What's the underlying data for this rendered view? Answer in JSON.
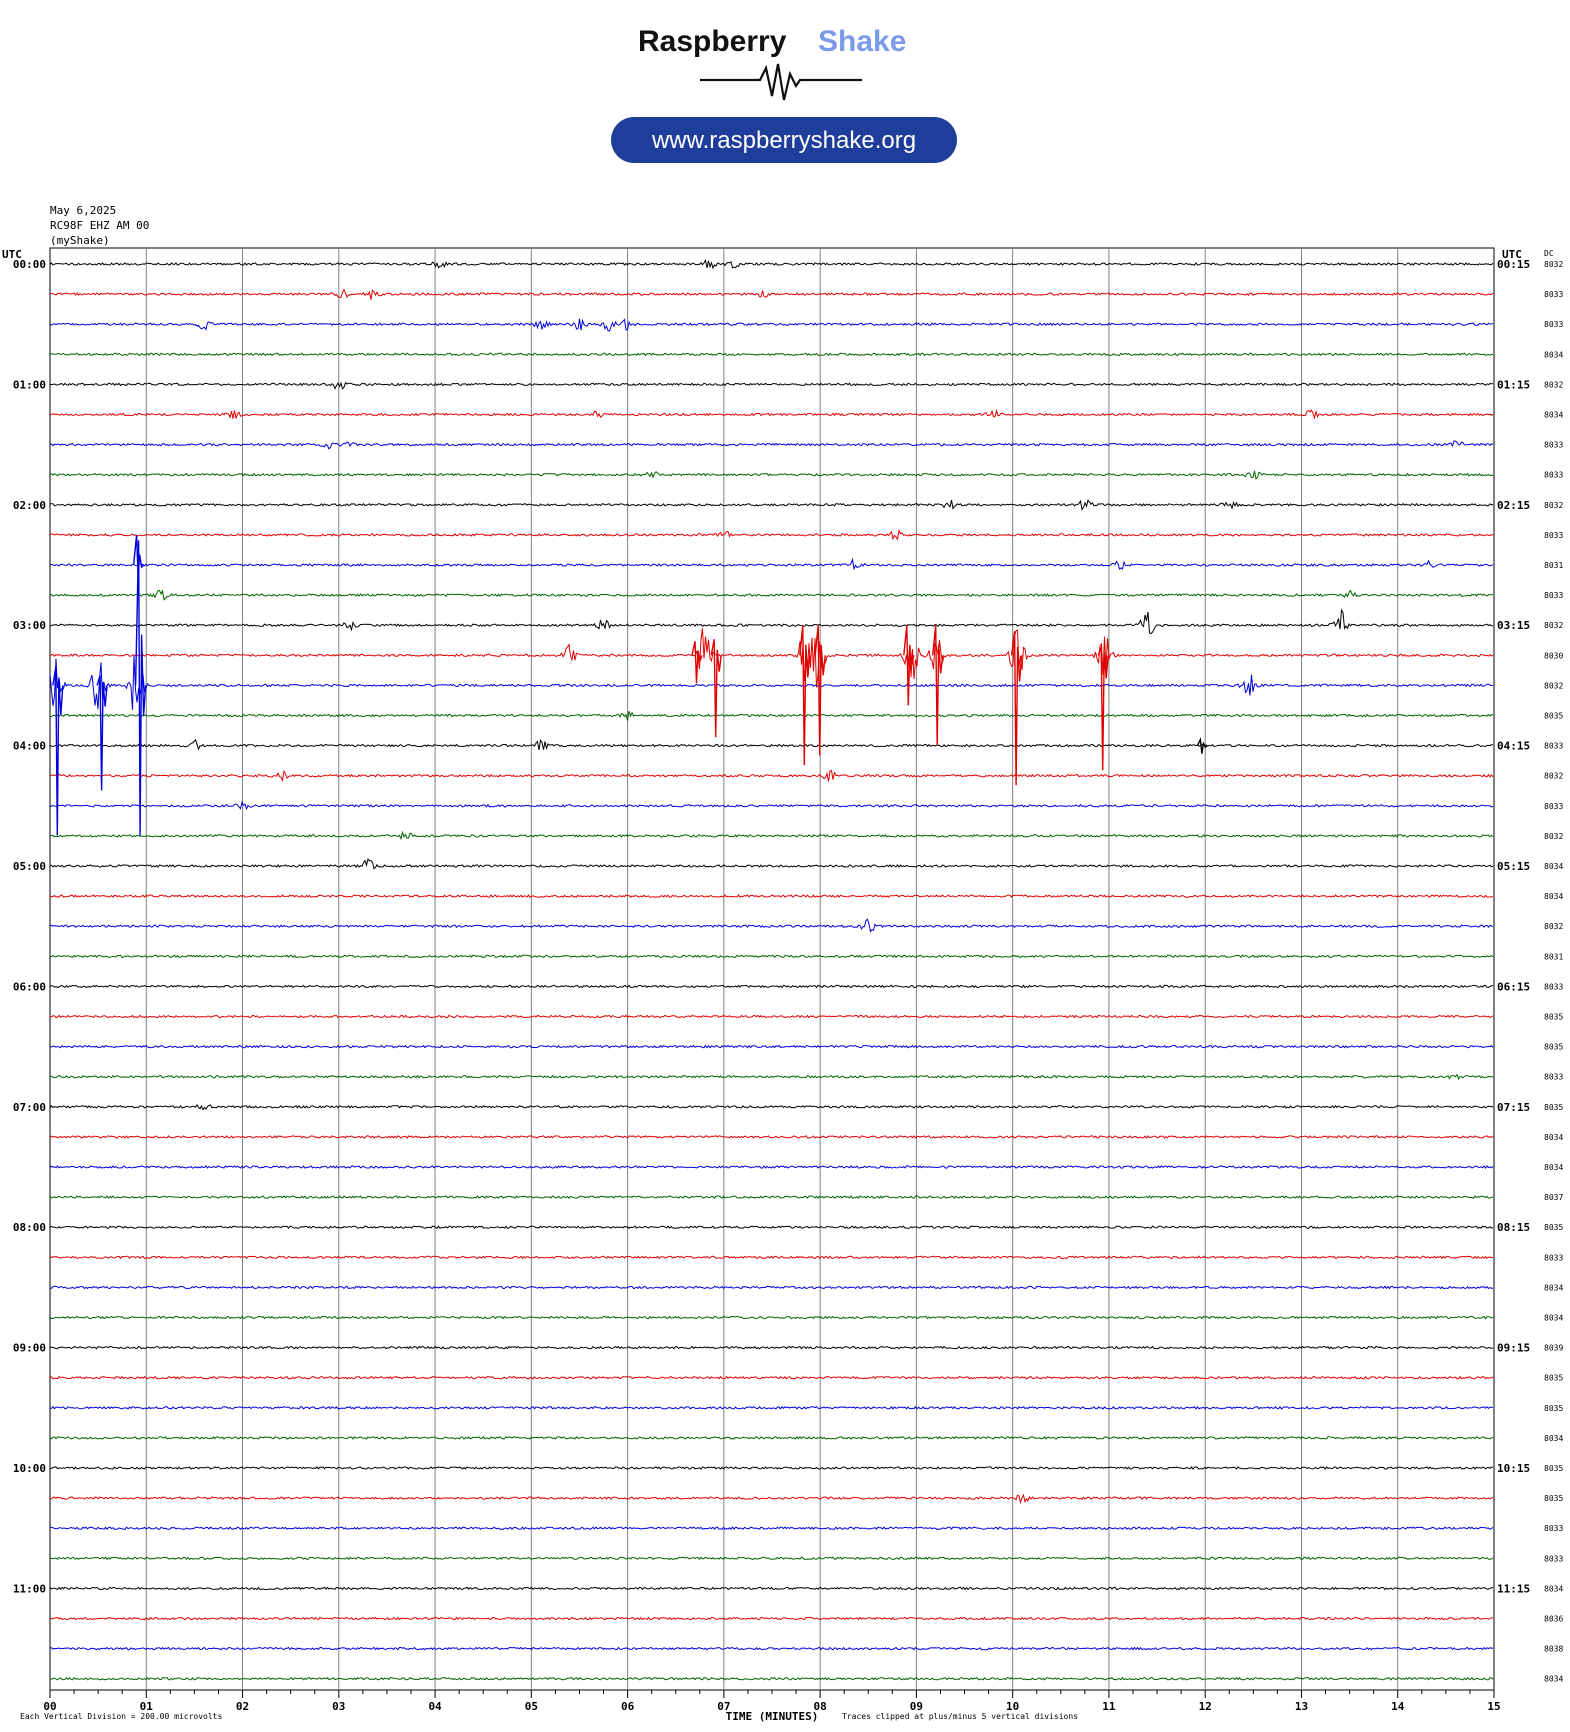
{
  "logo": {
    "brand_word1": "Raspberry",
    "brand_word2": "Shake",
    "url": "www.raspberryshake.org",
    "brand_color_dark": "#111111",
    "brand_color_accent": "#7b9be8",
    "pill_color": "#1f3d9a"
  },
  "header": {
    "date": "May 6,2025",
    "station": "RC98F EHZ AM 00",
    "network": "(myShake)"
  },
  "axes": {
    "left_title": "UTC",
    "right_title": "UTC",
    "dc_title": "DC",
    "xlabel": "TIME (MINUTES)",
    "footer_left": "Each Vertical Division =  200.00 microvolts",
    "footer_right": "Traces clipped at plus/minus 5 vertical divisions"
  },
  "chart_data": {
    "type": "line",
    "description_type": "helicorder",
    "x_range": [
      0,
      15
    ],
    "x_tick_labels": [
      "00",
      "01",
      "02",
      "03",
      "04",
      "05",
      "06",
      "07",
      "08",
      "09",
      "10",
      "11",
      "12",
      "13",
      "14",
      "15"
    ],
    "trace_colors": [
      "#000000",
      "#e00000",
      "#0000dd",
      "#006400"
    ],
    "left_hour_labels": [
      "00:00",
      "01:00",
      "02:00",
      "03:00",
      "04:00",
      "05:00",
      "06:00",
      "07:00",
      "08:00",
      "09:00",
      "10:00",
      "11:00"
    ],
    "right_hour_labels": [
      "00:15",
      "01:15",
      "02:15",
      "03:15",
      "04:15",
      "05:15",
      "06:15",
      "07:15",
      "08:15",
      "09:15",
      "10:15",
      "11:15"
    ],
    "dc_values": [
      "8032",
      "8033",
      "8033",
      "8034",
      "8032",
      "8034",
      "8033",
      "8033",
      "8032",
      "8033",
      "8031",
      "8033",
      "8032",
      "8030",
      "8032",
      "8035",
      "8033",
      "8032",
      "8033",
      "8032",
      "8034",
      "8034",
      "8032",
      "8031",
      "8033",
      "8035",
      "8035",
      "8033",
      "8035",
      "8034",
      "8034",
      "8037",
      "8035",
      "8033",
      "8034",
      "8034",
      "8039",
      "8035",
      "8035",
      "8034",
      "8035",
      "8035",
      "8033",
      "8033",
      "8034",
      "8036",
      "8038",
      "8034"
    ],
    "events": [
      {
        "line": 0,
        "minute": 4.05,
        "amp": 4
      },
      {
        "line": 0,
        "minute": 6.85,
        "amp": 5
      },
      {
        "line": 0,
        "minute": 7.1,
        "amp": 4
      },
      {
        "line": 1,
        "minute": 3.05,
        "amp": 5
      },
      {
        "line": 1,
        "minute": 3.35,
        "amp": 5
      },
      {
        "line": 1,
        "minute": 7.4,
        "amp": 3
      },
      {
        "line": 2,
        "minute": 1.6,
        "amp": 5
      },
      {
        "line": 2,
        "minute": 5.1,
        "amp": 5
      },
      {
        "line": 2,
        "minute": 5.5,
        "amp": 6
      },
      {
        "line": 2,
        "minute": 5.8,
        "amp": 6
      },
      {
        "line": 2,
        "minute": 6.0,
        "amp": 5
      },
      {
        "line": 4,
        "minute": 3.0,
        "amp": 5
      },
      {
        "line": 5,
        "minute": 1.9,
        "amp": 5
      },
      {
        "line": 5,
        "minute": 5.7,
        "amp": 4
      },
      {
        "line": 5,
        "minute": 9.8,
        "amp": 4
      },
      {
        "line": 5,
        "minute": 13.1,
        "amp": 4
      },
      {
        "line": 6,
        "minute": 2.9,
        "amp": 4
      },
      {
        "line": 6,
        "minute": 3.15,
        "amp": 5
      },
      {
        "line": 6,
        "minute": 14.6,
        "amp": 4
      },
      {
        "line": 7,
        "minute": 6.25,
        "amp": 4
      },
      {
        "line": 7,
        "minute": 12.5,
        "amp": 5
      },
      {
        "line": 8,
        "minute": 9.35,
        "amp": 5
      },
      {
        "line": 8,
        "minute": 10.75,
        "amp": 5
      },
      {
        "line": 8,
        "minute": 12.25,
        "amp": 4
      },
      {
        "line": 9,
        "minute": 7.0,
        "amp": 5
      },
      {
        "line": 9,
        "minute": 8.8,
        "amp": 5
      },
      {
        "line": 10,
        "minute": 8.35,
        "amp": 5
      },
      {
        "line": 10,
        "minute": 11.1,
        "amp": 5
      },
      {
        "line": 10,
        "minute": 14.3,
        "amp": 4
      },
      {
        "line": 11,
        "minute": 1.15,
        "amp": 5
      },
      {
        "line": 11,
        "minute": 13.5,
        "amp": 5
      },
      {
        "line": 12,
        "minute": 3.1,
        "amp": 6
      },
      {
        "line": 12,
        "minute": 5.75,
        "amp": 6
      },
      {
        "line": 12,
        "minute": 11.4,
        "amp": 18
      },
      {
        "line": 12,
        "minute": 13.4,
        "amp": 16
      },
      {
        "line": 13,
        "minute": 5.4,
        "amp": 12
      },
      {
        "line": 13,
        "minute": 6.8,
        "amp": 30
      },
      {
        "line": 13,
        "minute": 7.85,
        "amp": 35
      },
      {
        "line": 13,
        "minute": 7.98,
        "amp": 35
      },
      {
        "line": 13,
        "minute": 8.95,
        "amp": 30
      },
      {
        "line": 13,
        "minute": 9.2,
        "amp": 30
      },
      {
        "line": 13,
        "minute": 10.05,
        "amp": 30
      },
      {
        "line": 13,
        "minute": 10.95,
        "amp": 25
      },
      {
        "line": 14,
        "minute": 0.05,
        "amp": 40
      },
      {
        "line": 14,
        "minute": 0.5,
        "amp": 30
      },
      {
        "line": 14,
        "minute": 0.9,
        "amp": 40
      },
      {
        "line": 14,
        "minute": 12.45,
        "amp": 14
      },
      {
        "line": 15,
        "minute": 6.0,
        "amp": 4
      },
      {
        "line": 16,
        "minute": 1.5,
        "amp": 5
      },
      {
        "line": 16,
        "minute": 5.1,
        "amp": 5
      },
      {
        "line": 17,
        "minute": 2.4,
        "amp": 5
      },
      {
        "line": 17,
        "minute": 8.1,
        "amp": 5
      },
      {
        "line": 18,
        "minute": 2.0,
        "amp": 4
      },
      {
        "line": 19,
        "minute": 3.7,
        "amp": 4
      },
      {
        "line": 20,
        "minute": 3.3,
        "amp": 7
      },
      {
        "line": 22,
        "minute": 8.5,
        "amp": 8
      },
      {
        "line": 27,
        "minute": 14.6,
        "amp": 4
      },
      {
        "line": 28,
        "minute": 1.6,
        "amp": 4
      },
      {
        "line": 41,
        "minute": 10.1,
        "amp": 5
      }
    ],
    "spikes": [
      {
        "line": 10,
        "minute": 0.9,
        "up": 30,
        "down": 10
      },
      {
        "line": 13,
        "minute": 6.7,
        "up": 14,
        "down": 28
      },
      {
        "line": 13,
        "minute": 6.9,
        "up": 16,
        "down": 82
      },
      {
        "line": 13,
        "minute": 7.82,
        "up": 30,
        "down": 110
      },
      {
        "line": 13,
        "minute": 7.98,
        "up": 30,
        "down": 100
      },
      {
        "line": 13,
        "minute": 8.9,
        "up": 30,
        "down": 50
      },
      {
        "line": 13,
        "minute": 9.2,
        "up": 30,
        "down": 90
      },
      {
        "line": 13,
        "minute": 10.02,
        "up": 24,
        "down": 130
      },
      {
        "line": 13,
        "minute": 10.92,
        "up": 8,
        "down": 115
      },
      {
        "line": 14,
        "minute": 0.06,
        "up": 18,
        "down": 150
      },
      {
        "line": 14,
        "minute": 0.52,
        "up": 10,
        "down": 105
      },
      {
        "line": 14,
        "minute": 0.92,
        "up": 145,
        "down": 150
      },
      {
        "line": 16,
        "minute": 11.95,
        "up": 6,
        "down": 8
      }
    ]
  }
}
